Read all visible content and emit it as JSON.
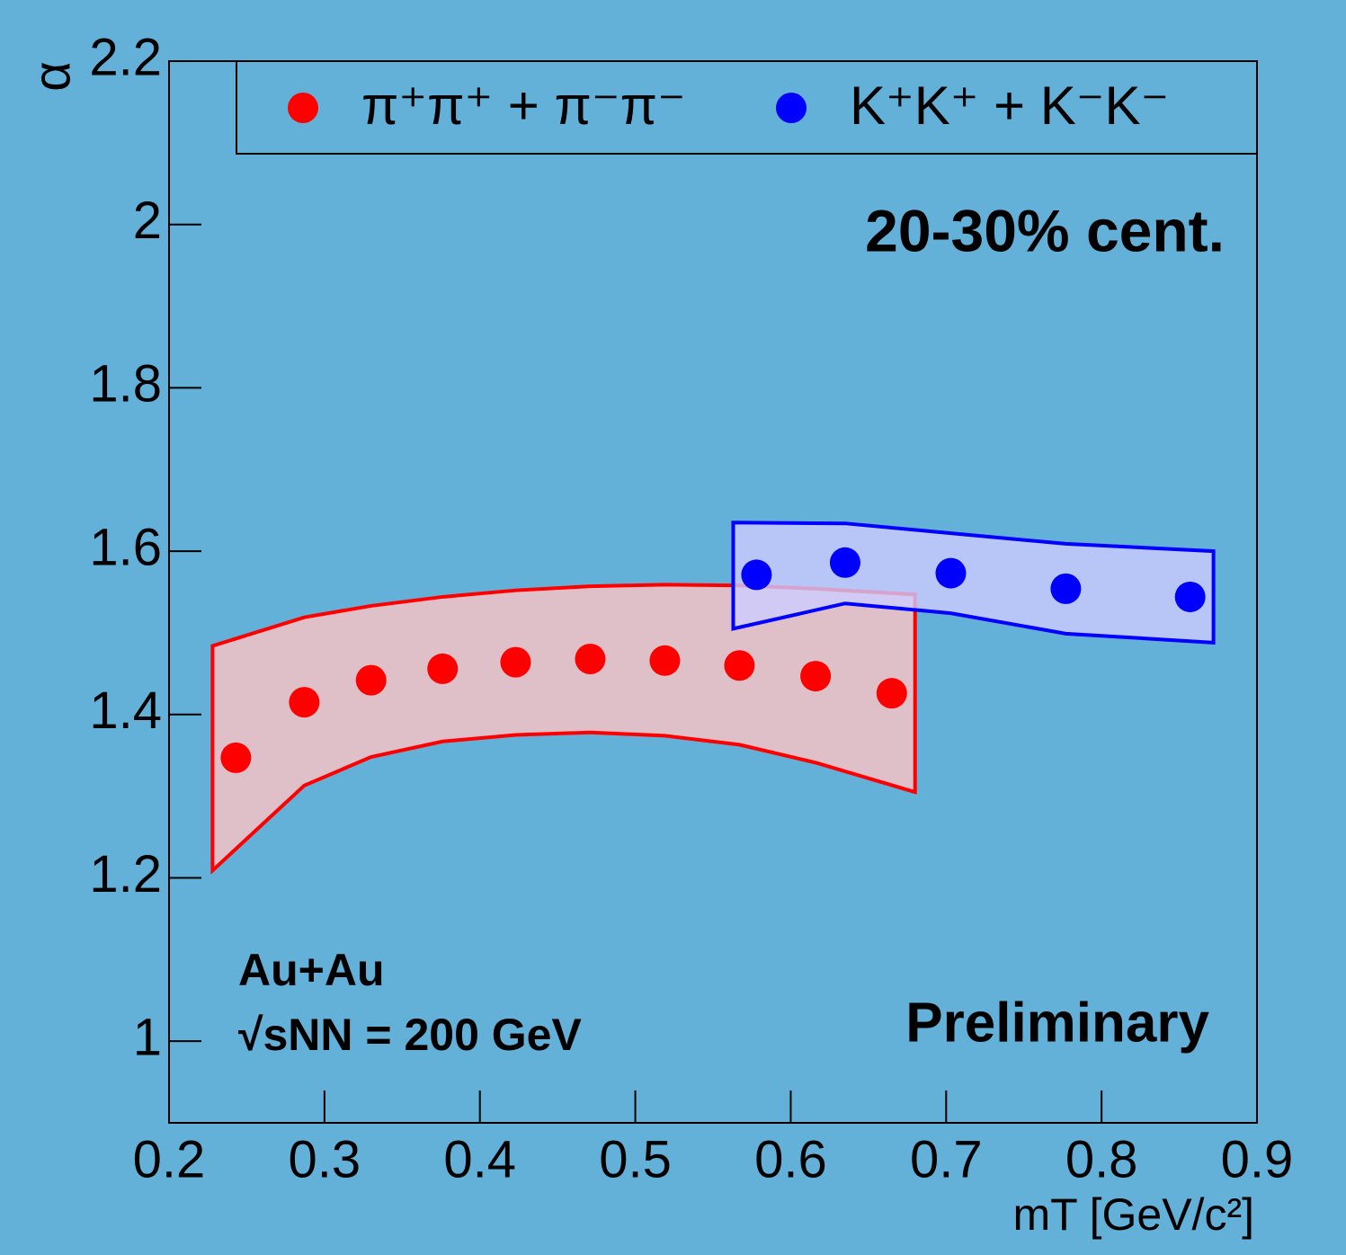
{
  "chart_data": {
    "type": "scatter",
    "y_label": "α",
    "x_label": "mT [GeV/c²]",
    "annotations": [
      "20-30% cent.",
      "Au+Au",
      "√sNN = 200 GeV",
      "Preliminary"
    ],
    "xlim": [
      0.2,
      0.9
    ],
    "xticks": [
      0.2,
      0.3,
      0.4,
      0.5,
      0.6,
      0.7,
      0.8,
      0.9
    ],
    "ylim": [
      0.9,
      2.2
    ],
    "yticks": [
      1,
      1.2,
      1.4,
      1.6,
      1.8,
      2,
      2.2
    ],
    "series": [
      {
        "name": "π⁺π⁺ + π⁻π⁻",
        "color": "#ff0000",
        "band_color": "#ffc4c4",
        "x": [
          0.243,
          0.287,
          0.33,
          0.376,
          0.423,
          0.471,
          0.519,
          0.567,
          0.616,
          0.665
        ],
        "values": [
          1.347,
          1.415,
          1.442,
          1.456,
          1.464,
          1.468,
          1.466,
          1.46,
          1.447,
          1.426
        ],
        "band_x": [
          0.228,
          0.287,
          0.33,
          0.376,
          0.423,
          0.471,
          0.519,
          0.567,
          0.616,
          0.68
        ],
        "band_upper": [
          1.484,
          1.519,
          1.533,
          1.544,
          1.552,
          1.557,
          1.559,
          1.558,
          1.554,
          1.547
        ],
        "band_lower": [
          1.209,
          1.313,
          1.348,
          1.367,
          1.375,
          1.378,
          1.374,
          1.363,
          1.341,
          1.305
        ]
      },
      {
        "name": "K⁺K⁺ + K⁻K⁻",
        "color": "#0000ff",
        "band_color": "#ccccff",
        "x": [
          0.578,
          0.635,
          0.703,
          0.777,
          0.857
        ],
        "values": [
          1.571,
          1.586,
          1.573,
          1.554,
          1.544
        ],
        "band_x": [
          0.563,
          0.635,
          0.703,
          0.777,
          0.872
        ],
        "band_upper": [
          1.635,
          1.634,
          1.622,
          1.609,
          1.6
        ],
        "band_lower": [
          1.505,
          1.536,
          1.524,
          1.499,
          1.488
        ]
      }
    ]
  }
}
